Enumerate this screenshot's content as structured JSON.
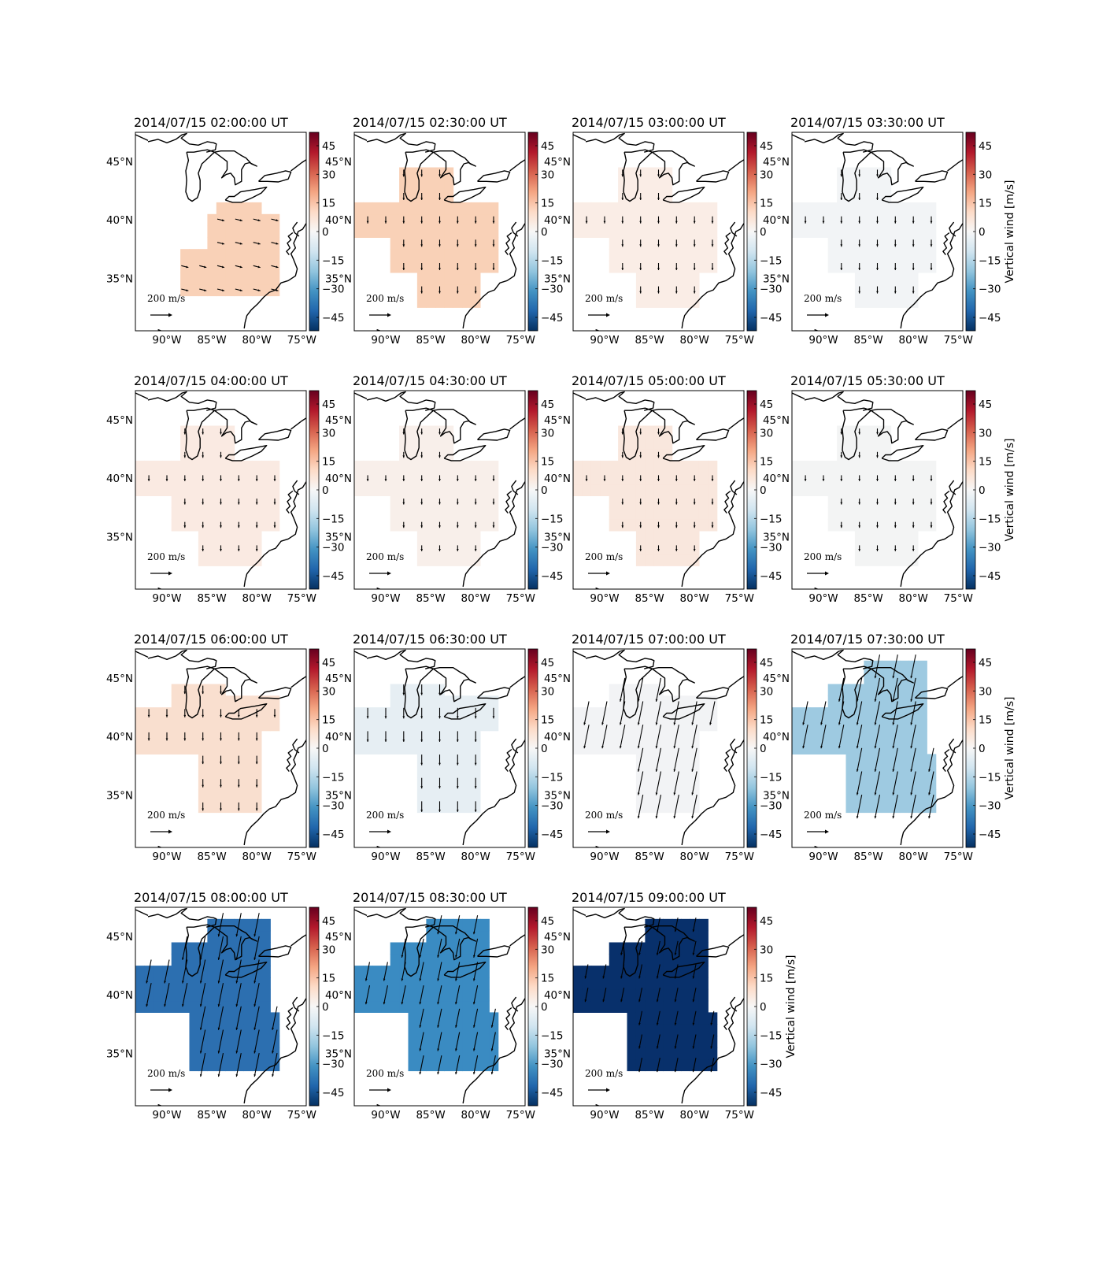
{
  "figure": {
    "title_prefix": "2014/07/15",
    "colorbar_label": "Vertical wind [m/s]",
    "reference_arrow_label": "200 m/s",
    "reference_arrow_value": 200,
    "colormap": "RdBu_r",
    "colormap_colors": [
      "#053061",
      "#2166ac",
      "#4393c3",
      "#92c5de",
      "#d1e5f0",
      "#f7f7f7",
      "#fddbc7",
      "#f4a582",
      "#d6604d",
      "#b2182b",
      "#67001f"
    ]
  },
  "chart_data": [
    {
      "type": "heatmap",
      "title": "2014/07/15 02:00:00 UT",
      "time": "02:00:00",
      "fill_color": "#f9d1b7",
      "vertical_wind_estimate": 10,
      "wind_direction": "east-southeast",
      "region": "south",
      "colorbar_label": "",
      "arrow_length": 0.3
    },
    {
      "type": "heatmap",
      "title": "2014/07/15 02:30:00 UT",
      "time": "02:30:00",
      "fill_color": "#f9d1b7",
      "vertical_wind_estimate": 10,
      "wind_direction": "south",
      "region": "wide",
      "colorbar_label": "",
      "arrow_length": 0.3
    },
    {
      "type": "heatmap",
      "title": "2014/07/15 03:00:00 UT",
      "time": "03:00:00",
      "fill_color": "#faede6",
      "vertical_wind_estimate": 3,
      "wind_direction": "south",
      "region": "wide",
      "colorbar_label": "",
      "arrow_length": 0.3
    },
    {
      "type": "heatmap",
      "title": "2014/07/15 03:30:00 UT",
      "time": "03:30:00",
      "fill_color": "#f2f4f6",
      "vertical_wind_estimate": -1,
      "wind_direction": "south",
      "region": "wide",
      "colorbar_label": "Vertical wind [m/s]",
      "arrow_length": 0.3
    },
    {
      "type": "heatmap",
      "title": "2014/07/15 04:00:00 UT",
      "time": "04:00:00",
      "fill_color": "#faeae2",
      "vertical_wind_estimate": 3,
      "wind_direction": "south",
      "region": "wide",
      "colorbar_label": "",
      "arrow_length": 0.25
    },
    {
      "type": "heatmap",
      "title": "2014/07/15 04:30:00 UT",
      "time": "04:30:00",
      "fill_color": "#f8efea",
      "vertical_wind_estimate": 2,
      "wind_direction": "south",
      "region": "wide",
      "colorbar_label": "",
      "arrow_length": 0.25
    },
    {
      "type": "heatmap",
      "title": "2014/07/15 05:00:00 UT",
      "time": "05:00:00",
      "fill_color": "#f9e7dd",
      "vertical_wind_estimate": 4,
      "wind_direction": "south",
      "region": "wide",
      "colorbar_label": "",
      "arrow_length": 0.25
    },
    {
      "type": "heatmap",
      "title": "2014/07/15 05:30:00 UT",
      "time": "05:30:00",
      "fill_color": "#f3f4f4",
      "vertical_wind_estimate": -1,
      "wind_direction": "south",
      "region": "wide",
      "colorbar_label": "Vertical wind [m/s]",
      "arrow_length": 0.25
    },
    {
      "type": "heatmap",
      "title": "2014/07/15 06:00:00 UT",
      "time": "06:00:00",
      "fill_color": "#f9dfcf",
      "vertical_wind_estimate": 6,
      "wind_direction": "south",
      "region": "split",
      "colorbar_label": "",
      "arrow_length": 0.35
    },
    {
      "type": "heatmap",
      "title": "2014/07/15 06:30:00 UT",
      "time": "06:30:00",
      "fill_color": "#e6eef3",
      "vertical_wind_estimate": -4,
      "wind_direction": "south",
      "region": "split",
      "colorbar_label": "",
      "arrow_length": 0.45
    },
    {
      "type": "heatmap",
      "title": "2014/07/15 07:00:00 UT",
      "time": "07:00:00",
      "fill_color": "#f2f3f5",
      "vertical_wind_estimate": -1,
      "wind_direction": "south-southwest",
      "region": "split",
      "colorbar_label": "",
      "arrow_length": 1.0
    },
    {
      "type": "heatmap",
      "title": "2014/07/15 07:30:00 UT",
      "time": "07:30:00",
      "fill_color": "#9ecae1",
      "vertical_wind_estimate": -18,
      "wind_direction": "south-southwest",
      "region": "blob",
      "colorbar_label": "Vertical wind [m/s]",
      "arrow_length": 1.0
    },
    {
      "type": "heatmap",
      "title": "2014/07/15 08:00:00 UT",
      "time": "08:00:00",
      "fill_color": "#2c6fb0",
      "vertical_wind_estimate": -35,
      "wind_direction": "south-southwest",
      "region": "blob",
      "colorbar_label": "",
      "arrow_length": 1.0
    },
    {
      "type": "heatmap",
      "title": "2014/07/15 08:30:00 UT",
      "time": "08:30:00",
      "fill_color": "#3a8bc2",
      "vertical_wind_estimate": -29,
      "wind_direction": "south-southwest",
      "region": "blob",
      "colorbar_label": "",
      "arrow_length": 0.8
    },
    {
      "type": "heatmap",
      "title": "2014/07/15 09:00:00 UT",
      "time": "09:00:00",
      "fill_color": "#08306b",
      "vertical_wind_estimate": -48,
      "wind_direction": "south-southwest",
      "region": "blob",
      "colorbar_label": "Vertical wind [m/s]",
      "arrow_length": 0.6
    }
  ],
  "axes": {
    "x_ticks": [
      "90°W",
      "85°W",
      "80°W",
      "75°W"
    ],
    "x_tick_values": [
      -90,
      -85,
      -80,
      -75
    ],
    "y_ticks": [
      "45°N",
      "40°N",
      "35°N"
    ],
    "y_tick_values": [
      45,
      40,
      35
    ],
    "xlim": [
      -93.5,
      -74.5
    ],
    "ylim": [
      30.5,
      47.5
    ],
    "colorbar_ticks": [
      "45",
      "30",
      "15",
      "0",
      "−15",
      "−30",
      "−45"
    ],
    "colorbar_tick_values": [
      45,
      30,
      15,
      0,
      -15,
      -30,
      -45
    ],
    "colorbar_range": [
      -52,
      52
    ]
  }
}
